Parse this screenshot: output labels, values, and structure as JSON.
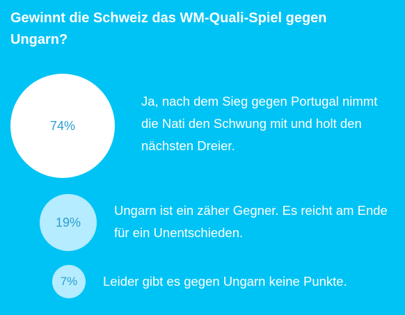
{
  "poll": {
    "question": "Gewinnt die Schweiz das WM-Quali-Spiel gegen Ungarn?",
    "options": [
      {
        "percent_label": "74%",
        "percent": 74,
        "text": "Ja, nach dem Sieg gegen Portugal nimmt die Nati den Schwung mit und holt den nächsten Dreier."
      },
      {
        "percent_label": "19%",
        "percent": 19,
        "text": "Ungarn ist ein zäher Gegner. Es reicht am Ende für ein Unentschieden."
      },
      {
        "percent_label": "7%",
        "percent": 7,
        "text": "Leider gibt es gegen Ungarn keine Punkte."
      }
    ]
  },
  "colors": {
    "background": "#00c3f5",
    "leading_bubble": "#ffffff",
    "other_bubbles": "#b5ecff",
    "percent_text": "#2b9fd0",
    "answer_text": "#ffffff"
  }
}
